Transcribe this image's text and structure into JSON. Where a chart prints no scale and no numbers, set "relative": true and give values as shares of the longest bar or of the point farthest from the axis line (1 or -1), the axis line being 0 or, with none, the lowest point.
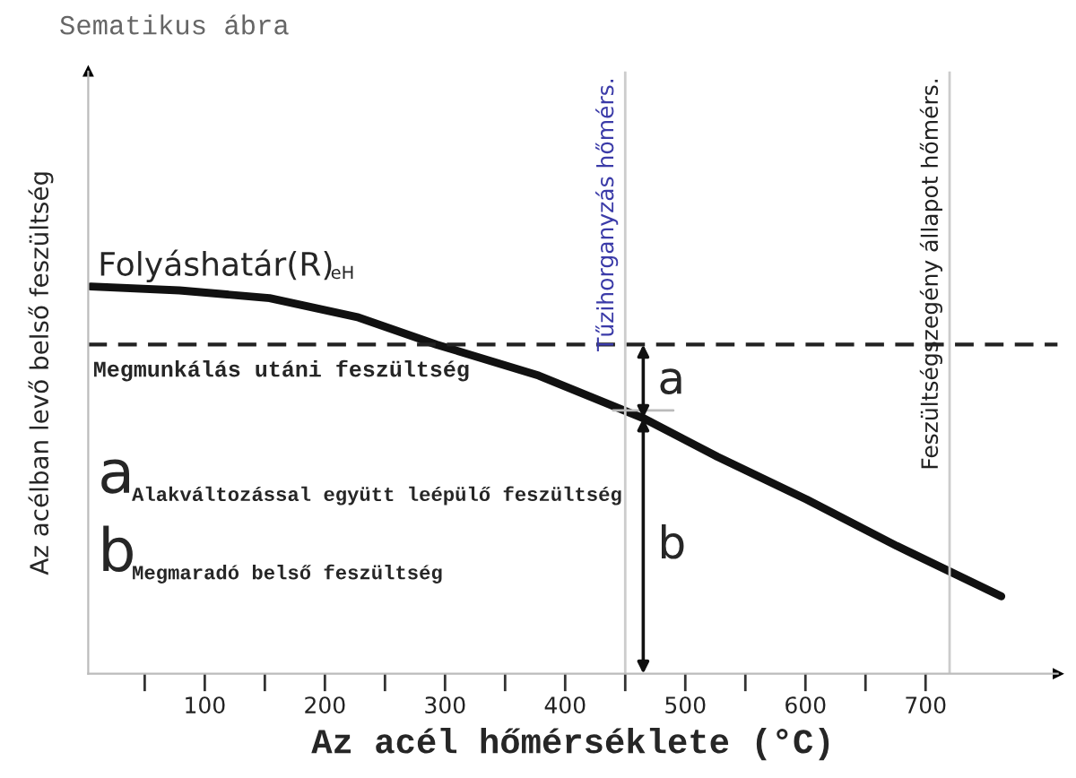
{
  "chart_data": {
    "type": "line",
    "relative": true,
    "title": "Sematikus ábra",
    "xlabel": "Az acél hőmérséklete (°C)",
    "ylabel": "Az acélban levő belső feszültség",
    "x": [
      5,
      79,
      154,
      228,
      293,
      378,
      465,
      527,
      601,
      676,
      763
    ],
    "series": [
      {
        "color": "#111111",
        "values": [
          1.0,
          0.99,
          0.97,
          0.92,
          0.85,
          0.77,
          0.66,
          0.56,
          0.45,
          0.33,
          0.2
        ]
      }
    ],
    "xlim": [
      3,
      810
    ],
    "xticks": [
      {
        "value": 50,
        "label": null
      },
      {
        "value": 100,
        "label": "100"
      },
      {
        "value": 150,
        "label": null
      },
      {
        "value": 200,
        "label": "200"
      },
      {
        "value": 250,
        "label": null
      },
      {
        "value": 300,
        "label": "300"
      },
      {
        "value": 350,
        "label": null
      },
      {
        "value": 400,
        "label": "400"
      },
      {
        "value": 450,
        "label": null
      },
      {
        "value": 500,
        "label": "500"
      },
      {
        "value": 550,
        "label": null
      },
      {
        "value": 600,
        "label": "600"
      },
      {
        "value": 650,
        "label": null
      },
      {
        "value": 700,
        "label": "700"
      }
    ],
    "ref_lines": [
      {
        "axis": "y",
        "value": 0.85,
        "label": "Megmunkálás utáni feszültség",
        "color": "#222222",
        "line_style": "dashed"
      },
      {
        "axis": "x",
        "value": 450,
        "label": "Tűzihorganyzás hőmérs.",
        "color": "#cccccc"
      },
      {
        "axis": "x",
        "value": 720,
        "label": "Feszültségszegény állapot hőmérs.",
        "color": "#cccccc"
      }
    ],
    "annotations": [
      "Folyáshatár(R)",
      "eH",
      "a",
      "Alakváltozással együtt leépülő feszültség",
      "b",
      "Megmaradó belső feszültség",
      "a",
      "b"
    ],
    "grid": false,
    "legend": false,
    "marker": "none",
    "line_style": "solid"
  }
}
